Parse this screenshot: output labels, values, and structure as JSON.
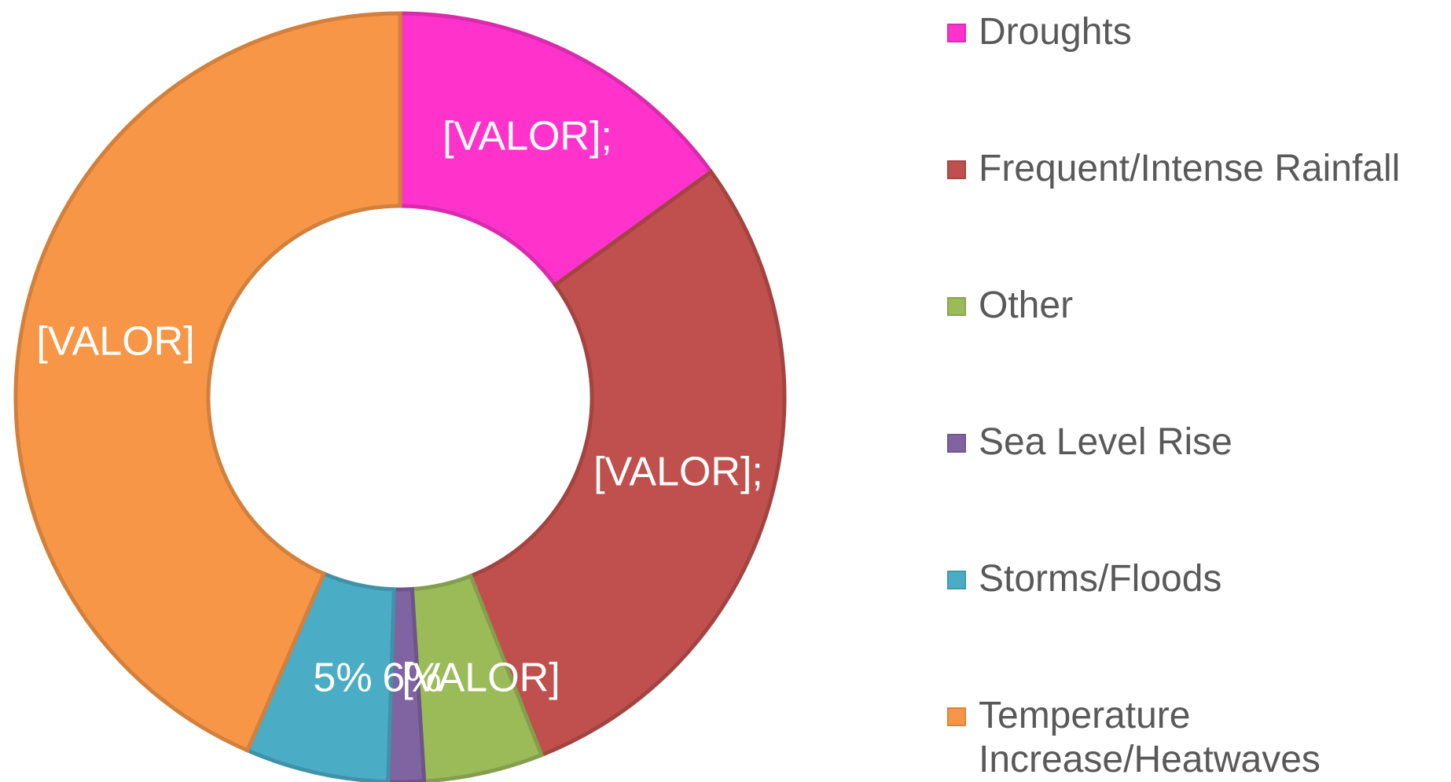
{
  "chart_data": {
    "type": "donut",
    "categories": [
      "Droughts",
      "Frequent/Intense Rainfall",
      "Other",
      "Sea Level Rise",
      "Storms/Floods",
      "Temperature Increase/Heatwaves"
    ],
    "values": [
      15,
      29,
      5,
      1.5,
      6,
      43.5
    ],
    "value_labels": [
      "[VALOR];",
      "[VALOR];",
      "5%",
      "[VALOR]",
      "6%",
      "[VALOR]"
    ],
    "colors": [
      "#ff33cc",
      "#c0504d",
      "#9bbb59",
      "#8064a2",
      "#4bacc6",
      "#f79646"
    ],
    "legend": "right"
  }
}
